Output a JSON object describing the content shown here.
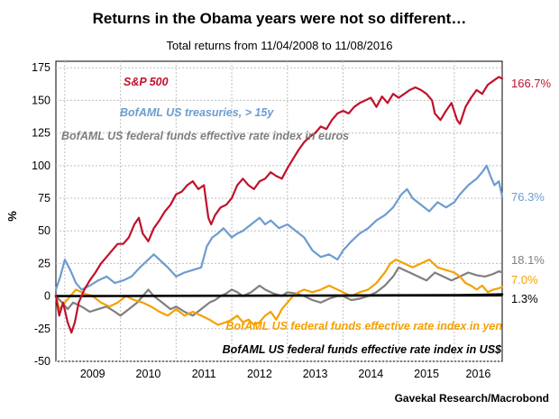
{
  "chart_data": {
    "type": "line",
    "title": "Returns in the Obama years were not so different…",
    "subtitle": "Total returns from 11/04/2008 to 11/08/2016",
    "ylabel": "%",
    "ylim": [
      -50,
      180
    ],
    "yticks": [
      -50,
      -25,
      0,
      25,
      50,
      75,
      100,
      125,
      150,
      175
    ],
    "xlim": [
      2008.84,
      2016.86
    ],
    "xticks": [
      "2009",
      "2010",
      "2011",
      "2012",
      "2013",
      "2014",
      "2015",
      "2016"
    ],
    "grid": true,
    "source": "Gavekal Research/Macrobond",
    "series": [
      {
        "name": "S&P 500",
        "color": "#c0122c",
        "end_label": "166.7%",
        "x": [
          2008.84,
          2008.9,
          2008.97,
          2009.05,
          2009.12,
          2009.18,
          2009.25,
          2009.35,
          2009.45,
          2009.55,
          2009.65,
          2009.75,
          2009.85,
          2009.95,
          2010.05,
          2010.15,
          2010.25,
          2010.33,
          2010.4,
          2010.5,
          2010.6,
          2010.7,
          2010.8,
          2010.9,
          2011.0,
          2011.1,
          2011.2,
          2011.3,
          2011.4,
          2011.5,
          2011.58,
          2011.63,
          2011.7,
          2011.8,
          2011.9,
          2012.0,
          2012.1,
          2012.2,
          2012.3,
          2012.4,
          2012.5,
          2012.6,
          2012.7,
          2012.8,
          2012.9,
          2013.0,
          2013.1,
          2013.2,
          2013.3,
          2013.4,
          2013.5,
          2013.6,
          2013.7,
          2013.8,
          2013.9,
          2014.0,
          2014.1,
          2014.2,
          2014.3,
          2014.4,
          2014.5,
          2014.6,
          2014.7,
          2014.8,
          2014.9,
          2015.0,
          2015.1,
          2015.2,
          2015.3,
          2015.4,
          2015.5,
          2015.6,
          2015.65,
          2015.75,
          2015.85,
          2015.95,
          2016.05,
          2016.1,
          2016.2,
          2016.3,
          2016.4,
          2016.5,
          2016.6,
          2016.7,
          2016.8,
          2016.86
        ],
        "y": [
          0,
          -15,
          -5,
          -20,
          -28,
          -20,
          -5,
          5,
          12,
          18,
          25,
          30,
          35,
          40,
          40,
          45,
          55,
          60,
          48,
          42,
          52,
          58,
          65,
          70,
          78,
          80,
          85,
          88,
          82,
          85,
          60,
          55,
          62,
          68,
          70,
          75,
          85,
          90,
          85,
          82,
          88,
          90,
          95,
          92,
          90,
          98,
          105,
          112,
          118,
          122,
          125,
          130,
          128,
          135,
          140,
          142,
          140,
          145,
          148,
          150,
          152,
          145,
          153,
          148,
          155,
          152,
          155,
          158,
          160,
          158,
          155,
          150,
          140,
          135,
          142,
          148,
          135,
          132,
          145,
          152,
          158,
          155,
          162,
          165,
          168,
          166.7
        ]
      },
      {
        "name": "BofAML US treasuries, > 15y",
        "color": "#6d9ccf",
        "end_label": "76.3%",
        "x": [
          2008.84,
          2008.92,
          2009.0,
          2009.1,
          2009.2,
          2009.3,
          2009.45,
          2009.6,
          2009.75,
          2009.9,
          2010.05,
          2010.2,
          2010.35,
          2010.5,
          2010.6,
          2010.7,
          2010.85,
          2011.0,
          2011.15,
          2011.3,
          2011.45,
          2011.55,
          2011.65,
          2011.75,
          2011.85,
          2012.0,
          2012.1,
          2012.2,
          2012.35,
          2012.5,
          2012.6,
          2012.7,
          2012.85,
          2013.0,
          2013.15,
          2013.3,
          2013.45,
          2013.6,
          2013.75,
          2013.9,
          2014.0,
          2014.15,
          2014.3,
          2014.45,
          2014.6,
          2014.75,
          2014.9,
          2015.05,
          2015.15,
          2015.25,
          2015.4,
          2015.55,
          2015.7,
          2015.85,
          2016.0,
          2016.1,
          2016.25,
          2016.4,
          2016.5,
          2016.58,
          2016.65,
          2016.72,
          2016.8,
          2016.86
        ],
        "y": [
          5,
          15,
          28,
          20,
          10,
          5,
          8,
          12,
          15,
          10,
          12,
          15,
          22,
          28,
          32,
          28,
          22,
          15,
          18,
          20,
          22,
          38,
          45,
          48,
          52,
          45,
          48,
          50,
          55,
          60,
          55,
          58,
          52,
          55,
          50,
          45,
          35,
          30,
          32,
          28,
          35,
          42,
          48,
          52,
          58,
          62,
          68,
          78,
          82,
          75,
          70,
          65,
          72,
          68,
          72,
          78,
          85,
          90,
          95,
          100,
          92,
          85,
          88,
          76.3
        ]
      },
      {
        "name": "BofAML US federal funds effective rate index in euros",
        "color": "#7f7f7f",
        "end_label": "18.1%",
        "x": [
          2008.84,
          2008.95,
          2009.05,
          2009.15,
          2009.3,
          2009.45,
          2009.6,
          2009.75,
          2009.9,
          2010.0,
          2010.15,
          2010.3,
          2010.4,
          2010.5,
          2010.6,
          2010.75,
          2010.9,
          2011.0,
          2011.15,
          2011.3,
          2011.45,
          2011.6,
          2011.7,
          2011.8,
          2011.9,
          2012.0,
          2012.1,
          2012.2,
          2012.35,
          2012.5,
          2012.6,
          2012.75,
          2012.9,
          2013.0,
          2013.15,
          2013.3,
          2013.45,
          2013.6,
          2013.75,
          2013.9,
          2014.0,
          2014.15,
          2014.3,
          2014.45,
          2014.6,
          2014.75,
          2014.9,
          2015.0,
          2015.1,
          2015.2,
          2015.35,
          2015.5,
          2015.65,
          2015.8,
          2015.95,
          2016.1,
          2016.25,
          2016.4,
          2016.55,
          2016.7,
          2016.8,
          2016.86
        ],
        "y": [
          0,
          -5,
          -10,
          -5,
          -8,
          -12,
          -10,
          -8,
          -12,
          -15,
          -10,
          -5,
          0,
          5,
          0,
          -5,
          -10,
          -8,
          -12,
          -15,
          -10,
          -5,
          -3,
          0,
          2,
          5,
          3,
          0,
          3,
          8,
          5,
          2,
          0,
          3,
          2,
          0,
          -3,
          -5,
          -2,
          0,
          0,
          -3,
          -2,
          0,
          3,
          8,
          15,
          22,
          20,
          18,
          15,
          12,
          18,
          15,
          12,
          15,
          18,
          16,
          15,
          17,
          19,
          18.1
        ]
      },
      {
        "name": "BofAML US federal funds effective rate index in yen",
        "color": "#f5a100",
        "end_label": "7.0%",
        "x": [
          2008.84,
          2008.9,
          2009.0,
          2009.1,
          2009.2,
          2009.35,
          2009.5,
          2009.65,
          2009.8,
          2009.95,
          2010.1,
          2010.25,
          2010.4,
          2010.55,
          2010.7,
          2010.85,
          2011.0,
          2011.15,
          2011.3,
          2011.45,
          2011.6,
          2011.75,
          2011.9,
          2012.0,
          2012.1,
          2012.2,
          2012.3,
          2012.4,
          2012.5,
          2012.6,
          2012.7,
          2012.8,
          2012.9,
          2013.0,
          2013.1,
          2013.2,
          2013.3,
          2013.45,
          2013.6,
          2013.75,
          2013.9,
          2014.0,
          2014.15,
          2014.3,
          2014.45,
          2014.6,
          2014.75,
          2014.85,
          2014.95,
          2015.1,
          2015.25,
          2015.4,
          2015.55,
          2015.7,
          2015.85,
          2016.0,
          2016.1,
          2016.2,
          2016.3,
          2016.4,
          2016.5,
          2016.6,
          2016.7,
          2016.8,
          2016.86
        ],
        "y": [
          0,
          -10,
          -5,
          0,
          5,
          2,
          0,
          -5,
          -8,
          -5,
          0,
          -3,
          -5,
          -8,
          -12,
          -15,
          -10,
          -15,
          -12,
          -15,
          -18,
          -22,
          -20,
          -18,
          -15,
          -20,
          -18,
          -22,
          -20,
          -15,
          -12,
          -18,
          -10,
          -5,
          0,
          3,
          5,
          3,
          5,
          8,
          5,
          3,
          0,
          3,
          5,
          10,
          18,
          25,
          28,
          25,
          22,
          25,
          28,
          22,
          20,
          18,
          15,
          10,
          8,
          5,
          8,
          3,
          5,
          6,
          7.0
        ]
      },
      {
        "name": "BofAML US federal funds effective rate index in US$",
        "color": "#000000",
        "end_label": "1.3%",
        "x": [
          2008.84,
          2010.0,
          2011.0,
          2012.0,
          2013.0,
          2014.0,
          2015.0,
          2015.95,
          2016.5,
          2016.86
        ],
        "y": [
          0,
          0.1,
          0.2,
          0.3,
          0.4,
          0.5,
          0.6,
          0.7,
          1.0,
          1.3
        ]
      }
    ]
  }
}
